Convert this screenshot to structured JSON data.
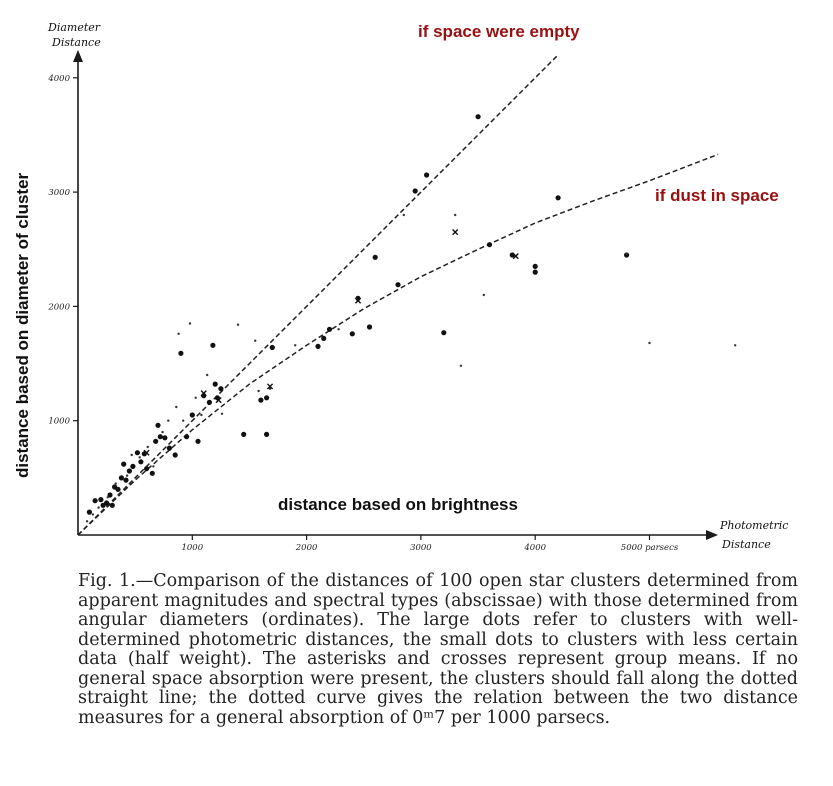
{
  "chart_data": {
    "type": "scatter",
    "y_axis_title": [
      "Diameter",
      "Distance"
    ],
    "x_axis_title": [
      "Photometric",
      "Distance"
    ],
    "xlim": [
      0,
      6000
    ],
    "ylim": [
      0,
      4200
    ],
    "x_ticks": [
      {
        "value": 1000,
        "label": "1000"
      },
      {
        "value": 2000,
        "label": "2000"
      },
      {
        "value": 3000,
        "label": "3000"
      },
      {
        "value": 4000,
        "label": "4000"
      },
      {
        "value": 5000,
        "label": "5000 parsecs"
      }
    ],
    "y_ticks": [
      {
        "value": 1000,
        "label": "1000"
      },
      {
        "value": 2000,
        "label": "2000"
      },
      {
        "value": 3000,
        "label": "3000"
      },
      {
        "value": 4000,
        "label": "4000"
      }
    ],
    "annotations": {
      "straight_line": "if space were empty",
      "curve": "if dust in space",
      "y_overlay": "distance based on diameter of cluster",
      "x_overlay": "distance based on brightness"
    },
    "straight_line": [
      [
        0,
        0
      ],
      [
        4200,
        4200
      ]
    ],
    "curve": [
      [
        0,
        0
      ],
      [
        500,
        480
      ],
      [
        1000,
        920
      ],
      [
        1500,
        1320
      ],
      [
        2000,
        1660
      ],
      [
        2500,
        1980
      ],
      [
        3000,
        2260
      ],
      [
        3500,
        2500
      ],
      [
        4000,
        2730
      ],
      [
        4500,
        2920
      ],
      [
        5000,
        3100
      ],
      [
        5600,
        3330
      ]
    ],
    "large_dots": [
      [
        100,
        200
      ],
      [
        150,
        300
      ],
      [
        200,
        310
      ],
      [
        220,
        260
      ],
      [
        250,
        280
      ],
      [
        280,
        350
      ],
      [
        300,
        260
      ],
      [
        320,
        420
      ],
      [
        350,
        400
      ],
      [
        380,
        500
      ],
      [
        400,
        620
      ],
      [
        420,
        480
      ],
      [
        450,
        560
      ],
      [
        480,
        600
      ],
      [
        520,
        720
      ],
      [
        550,
        640
      ],
      [
        580,
        710
      ],
      [
        600,
        580
      ],
      [
        650,
        540
      ],
      [
        680,
        820
      ],
      [
        700,
        960
      ],
      [
        720,
        860
      ],
      [
        760,
        850
      ],
      [
        800,
        760
      ],
      [
        850,
        700
      ],
      [
        900,
        1590
      ],
      [
        950,
        860
      ],
      [
        1000,
        1050
      ],
      [
        1050,
        820
      ],
      [
        1100,
        1220
      ],
      [
        1150,
        1160
      ],
      [
        1180,
        1660
      ],
      [
        1200,
        1320
      ],
      [
        1220,
        1200
      ],
      [
        1250,
        1280
      ],
      [
        1450,
        880
      ],
      [
        1600,
        1180
      ],
      [
        1650,
        1200
      ],
      [
        1650,
        880
      ],
      [
        1700,
        1640
      ],
      [
        2100,
        1650
      ],
      [
        2150,
        1720
      ],
      [
        2200,
        1800
      ],
      [
        2400,
        1760
      ],
      [
        2550,
        1820
      ],
      [
        2450,
        2070
      ],
      [
        2600,
        2430
      ],
      [
        2800,
        2190
      ],
      [
        2950,
        3010
      ],
      [
        3050,
        3150
      ],
      [
        3200,
        1770
      ],
      [
        3500,
        3660
      ],
      [
        3600,
        2540
      ],
      [
        3800,
        2450
      ],
      [
        4000,
        2350
      ],
      [
        4000,
        2300
      ],
      [
        4200,
        2950
      ],
      [
        4800,
        2450
      ]
    ],
    "small_dots": [
      [
        80,
        120
      ],
      [
        130,
        180
      ],
      [
        180,
        240
      ],
      [
        260,
        330
      ],
      [
        330,
        450
      ],
      [
        370,
        360
      ],
      [
        430,
        520
      ],
      [
        470,
        700
      ],
      [
        540,
        680
      ],
      [
        610,
        770
      ],
      [
        660,
        600
      ],
      [
        740,
        900
      ],
      [
        790,
        1000
      ],
      [
        860,
        1120
      ],
      [
        880,
        1760
      ],
      [
        920,
        1000
      ],
      [
        980,
        1850
      ],
      [
        1030,
        1200
      ],
      [
        1080,
        1050
      ],
      [
        1130,
        1400
      ],
      [
        1260,
        1060
      ],
      [
        1400,
        1840
      ],
      [
        1550,
        1700
      ],
      [
        1580,
        1260
      ],
      [
        1680,
        1280
      ],
      [
        1900,
        1660
      ],
      [
        2280,
        1800
      ],
      [
        2850,
        2800
      ],
      [
        3300,
        2800
      ],
      [
        3550,
        2100
      ],
      [
        3350,
        1480
      ],
      [
        5750,
        1660
      ],
      [
        4800,
        2460
      ],
      [
        5000,
        1680
      ]
    ],
    "crosses": [
      [
        600,
        720
      ],
      [
        1100,
        1240
      ],
      [
        1230,
        1180
      ],
      [
        1680,
        1300
      ],
      [
        2450,
        2050
      ],
      [
        3300,
        2650
      ],
      [
        3830,
        2440
      ]
    ]
  },
  "caption": {
    "text": "Fig. 1.—Comparison of the distances of 100 open star clusters determined from apparent magnitudes and spectral types (abscissae) with those determined from angular diameters (ordinates). The large dots refer to clusters with well-determined photometric distances, the small dots to clusters with less certain data (half weight). The asterisks and crosses represent group means. If no general space absorption were present, the clusters should fall along the dotted straight line; the dotted curve gives the relation between the two distance measures for a general absorption of 0ᵐ7 per 1000 parsecs."
  }
}
